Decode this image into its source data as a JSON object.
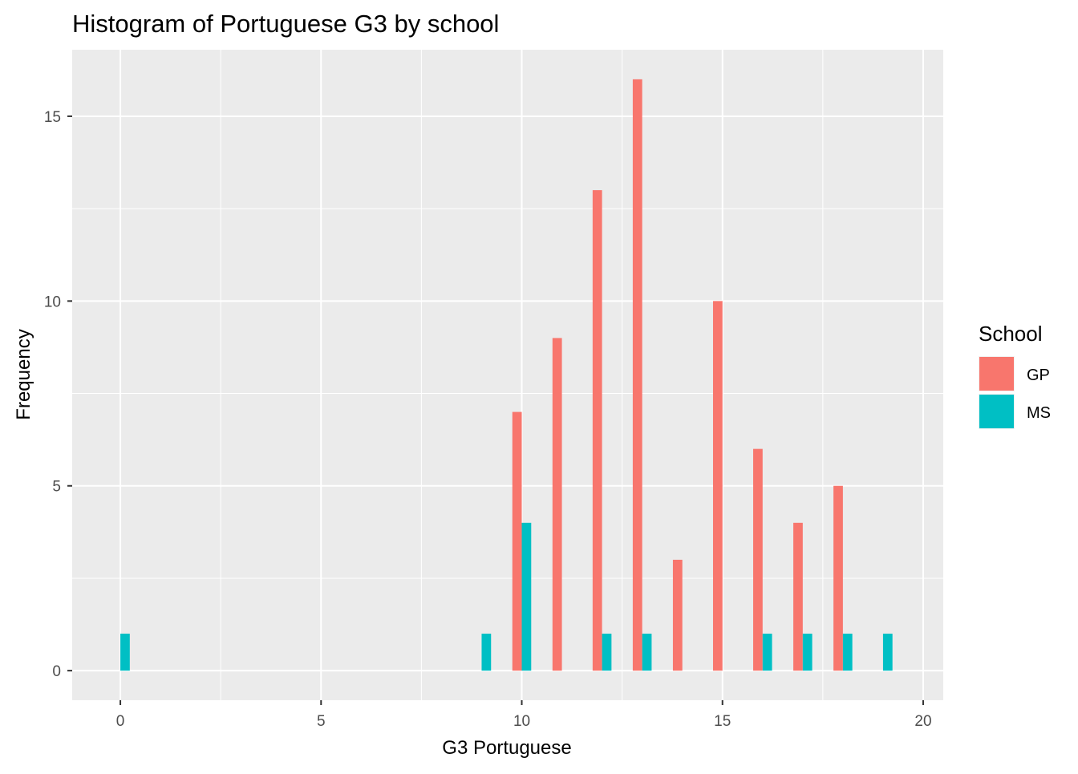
{
  "chart_data": {
    "type": "bar",
    "title": "Histogram of Portuguese G3 by school",
    "xlabel": "G3 Portuguese",
    "ylabel": "Frequency",
    "xlim": [
      -1.2,
      20.5
    ],
    "ylim": [
      -0.8,
      16.8
    ],
    "x_ticks": [
      "0",
      "5",
      "10",
      "15",
      "20"
    ],
    "y_ticks": [
      "0",
      "5",
      "10",
      "15"
    ],
    "grid": true,
    "legend": {
      "title": "School",
      "placement": "right",
      "entries": [
        "GP",
        "MS"
      ]
    },
    "series": [
      {
        "name": "GP",
        "color": "#F8766D",
        "points": [
          {
            "x": 10,
            "y": 7
          },
          {
            "x": 11,
            "y": 9
          },
          {
            "x": 12,
            "y": 13
          },
          {
            "x": 13,
            "y": 16
          },
          {
            "x": 14,
            "y": 3
          },
          {
            "x": 15,
            "y": 10
          },
          {
            "x": 16,
            "y": 6
          },
          {
            "x": 17,
            "y": 4
          },
          {
            "x": 18,
            "y": 5
          }
        ]
      },
      {
        "name": "MS",
        "color": "#00BFC4",
        "points": [
          {
            "x": 0,
            "y": 1
          },
          {
            "x": 9,
            "y": 1
          },
          {
            "x": 10,
            "y": 4
          },
          {
            "x": 12,
            "y": 1
          },
          {
            "x": 13,
            "y": 1
          },
          {
            "x": 16,
            "y": 1
          },
          {
            "x": 17,
            "y": 1
          },
          {
            "x": 18,
            "y": 1
          },
          {
            "x": 19,
            "y": 1
          }
        ]
      }
    ]
  },
  "colors": {
    "panel_background": "#EBEBEB",
    "grid_major": "#FFFFFF"
  }
}
